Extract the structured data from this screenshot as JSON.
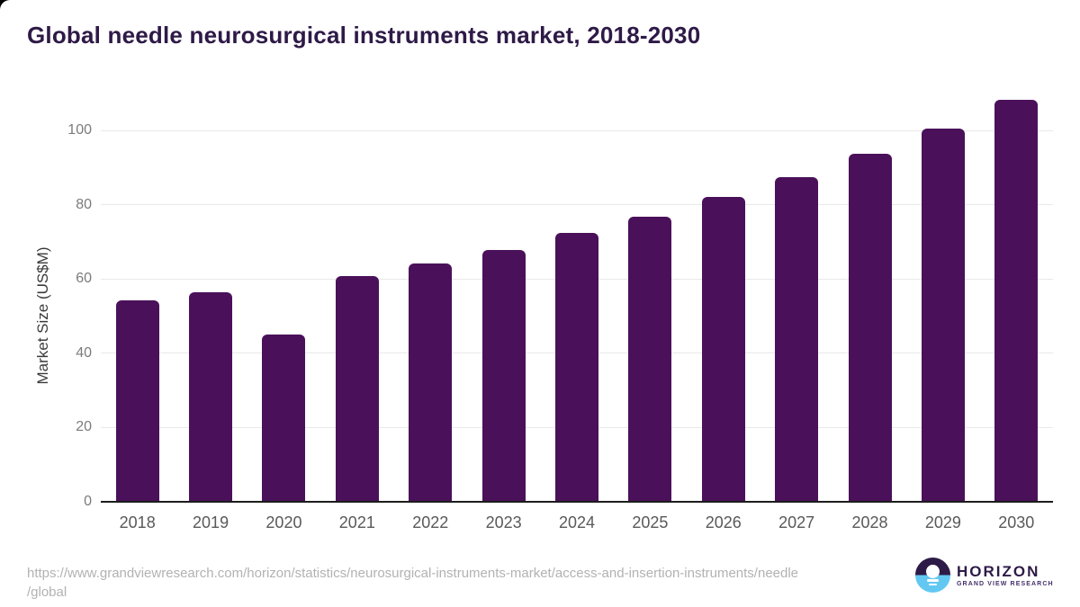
{
  "page": {
    "title": "Global needle neurosurgical instruments market, 2018-2030"
  },
  "chart_data": {
    "type": "bar",
    "title": "Global needle neurosurgical instruments market, 2018-2030",
    "categories": [
      "2018",
      "2019",
      "2020",
      "2021",
      "2022",
      "2023",
      "2024",
      "2025",
      "2026",
      "2027",
      "2028",
      "2029",
      "2030"
    ],
    "values": [
      54.2,
      56.3,
      45.0,
      60.8,
      64.2,
      67.9,
      72.3,
      76.8,
      82.0,
      87.5,
      93.8,
      100.5,
      108.2
    ],
    "xlabel": "",
    "ylabel": "Market Size (US$M)",
    "ylim": [
      0,
      112
    ],
    "yticks": [
      0,
      20,
      40,
      60,
      80,
      100
    ],
    "grid": true,
    "legend": "none",
    "bar_color": "#4a115a"
  },
  "footer": {
    "url_lines": [
      "https://www.grandviewresearch.com/horizon/statistics/neurosurgical-instruments-market/access-and-insertion-instruments/needle",
      "/global"
    ],
    "logo": {
      "brand": "HORIZON",
      "tagline": "GRAND VIEW RESEARCH"
    }
  },
  "colors": {
    "bar_purple": "#4a115a",
    "title_purple": "#2e1a47",
    "logo_blue": "#62c8f2",
    "gridline_gray": "#e8e8e8",
    "tick_gray": "#7b7b7b",
    "url_gray": "#b2b2b2"
  }
}
